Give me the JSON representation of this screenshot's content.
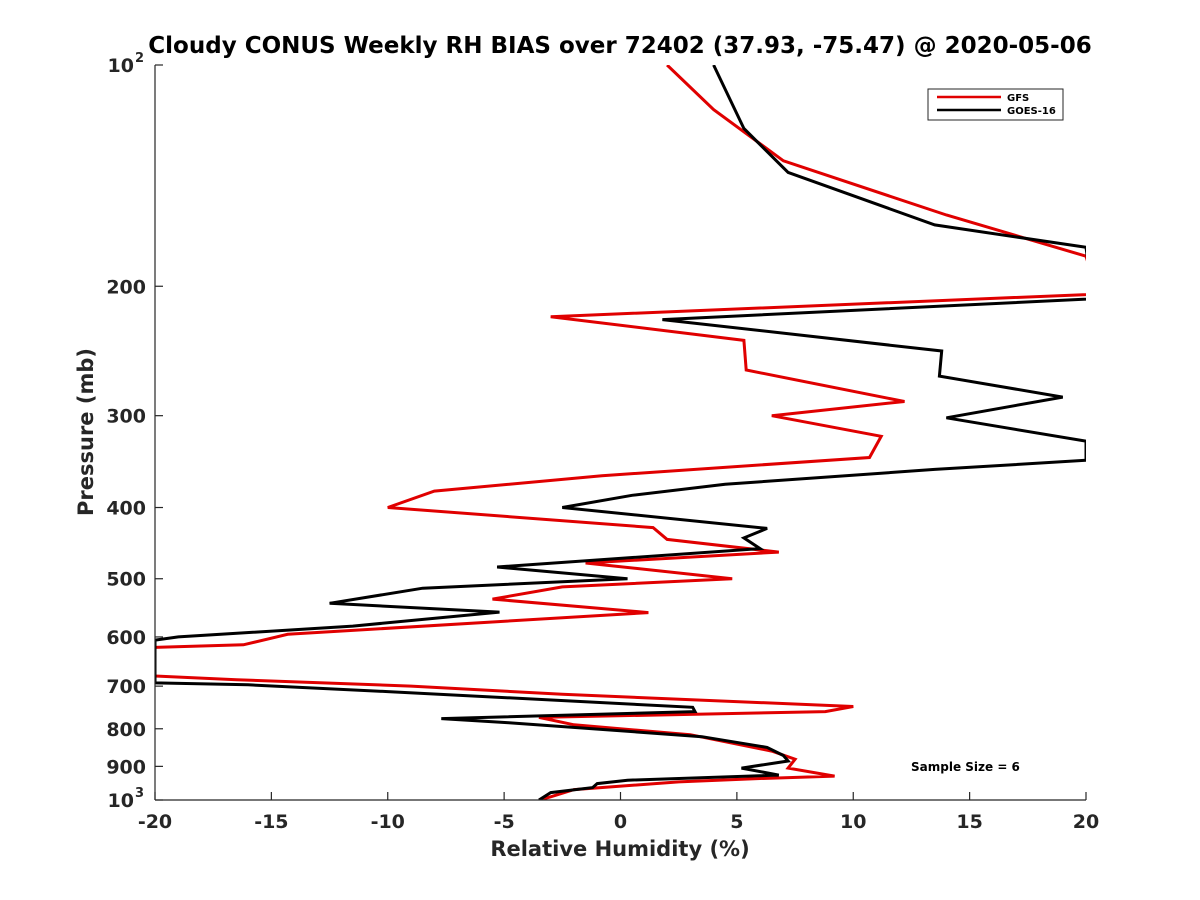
{
  "chart_data": {
    "type": "line",
    "title": "Cloudy CONUS Weekly RH BIAS over 72402 (37.93, -75.47) @ 2020-05-06",
    "xlabel": "Relative Humidity (%)",
    "ylabel": "Pressure (mb)",
    "xlim": [
      -20,
      20
    ],
    "ylim": [
      100,
      1000
    ],
    "y_scale": "log",
    "y_reversed": true,
    "x_ticks": [
      "-20",
      "-15",
      "-10",
      "-5",
      "0",
      "5",
      "10",
      "15",
      "20"
    ],
    "y_ticks": [
      {
        "value": 100,
        "base": "10",
        "exp": "2"
      },
      {
        "value": 200,
        "label": "200"
      },
      {
        "value": 300,
        "label": "300"
      },
      {
        "value": 400,
        "label": "400"
      },
      {
        "value": 500,
        "label": "500"
      },
      {
        "value": 600,
        "label": "600"
      },
      {
        "value": 700,
        "label": "700"
      },
      {
        "value": 800,
        "label": "800"
      },
      {
        "value": 900,
        "label": "900"
      },
      {
        "value": 1000,
        "base": "10",
        "exp": "3"
      }
    ],
    "legend_position": "top-right",
    "annotation": "Sample Size = 6",
    "series": [
      {
        "name": "GFS",
        "color": "#e00000",
        "points": [
          [
            2.0,
            100
          ],
          [
            4.0,
            115
          ],
          [
            7.0,
            135
          ],
          [
            14.0,
            160
          ],
          [
            20.0,
            182
          ],
          [
            20.5,
            205
          ],
          [
            -3.0,
            220
          ],
          [
            5.3,
            237
          ],
          [
            5.4,
            260
          ],
          [
            12.2,
            287
          ],
          [
            6.5,
            300
          ],
          [
            11.2,
            320
          ],
          [
            10.7,
            342
          ],
          [
            -0.8,
            362
          ],
          [
            -8.0,
            380
          ],
          [
            -10.0,
            400
          ],
          [
            1.4,
            426
          ],
          [
            2.0,
            442
          ],
          [
            6.8,
            460
          ],
          [
            -1.5,
            476
          ],
          [
            4.8,
            500
          ],
          [
            -2.5,
            513
          ],
          [
            -5.5,
            533
          ],
          [
            1.2,
            556
          ],
          [
            -14.3,
            595
          ],
          [
            -16.2,
            615
          ],
          [
            -20.0,
            620
          ],
          [
            -20.0,
            678
          ],
          [
            -16.5,
            686
          ],
          [
            -9.0,
            700
          ],
          [
            -2.5,
            718
          ],
          [
            10.0,
            746
          ],
          [
            8.8,
            758
          ],
          [
            -3.5,
            772
          ],
          [
            -2.0,
            790
          ],
          [
            3.0,
            815
          ],
          [
            6.5,
            858
          ],
          [
            7.5,
            880
          ],
          [
            7.2,
            905
          ],
          [
            9.2,
            928
          ],
          [
            6.0,
            935
          ],
          [
            2.5,
            945
          ],
          [
            -2.0,
            968
          ],
          [
            -3.0,
            990
          ],
          [
            -3.5,
            1000
          ]
        ]
      },
      {
        "name": "GOES-16",
        "color": "#000000",
        "points": [
          [
            4.0,
            100
          ],
          [
            5.3,
            122
          ],
          [
            7.2,
            140
          ],
          [
            13.5,
            165
          ],
          [
            20.0,
            177
          ],
          [
            20.3,
            208
          ],
          [
            1.8,
            222
          ],
          [
            13.8,
            245
          ],
          [
            13.7,
            265
          ],
          [
            19.0,
            283
          ],
          [
            14.0,
            302
          ],
          [
            20.0,
            325
          ],
          [
            20.0,
            345
          ],
          [
            13.5,
            355
          ],
          [
            4.5,
            372
          ],
          [
            0.5,
            385
          ],
          [
            -2.5,
            400
          ],
          [
            6.3,
            427
          ],
          [
            5.3,
            440
          ],
          [
            6.0,
            455
          ],
          [
            -5.3,
            482
          ],
          [
            0.3,
            500
          ],
          [
            -8.5,
            515
          ],
          [
            -12.5,
            540
          ],
          [
            -5.2,
            555
          ],
          [
            -11.5,
            580
          ],
          [
            -19.0,
            600
          ],
          [
            -20.0,
            606
          ],
          [
            -20.0,
            693
          ],
          [
            -16.0,
            697
          ],
          [
            -10.0,
            712
          ],
          [
            3.1,
            748
          ],
          [
            3.2,
            758
          ],
          [
            -7.7,
            775
          ],
          [
            -4.8,
            785
          ],
          [
            3.5,
            820
          ],
          [
            6.3,
            848
          ],
          [
            7.0,
            870
          ],
          [
            7.2,
            885
          ],
          [
            5.2,
            905
          ],
          [
            6.8,
            925
          ],
          [
            0.3,
            940
          ],
          [
            -1.0,
            950
          ],
          [
            -1.2,
            962
          ],
          [
            -3.0,
            977
          ],
          [
            -3.5,
            1000
          ]
        ]
      }
    ]
  }
}
